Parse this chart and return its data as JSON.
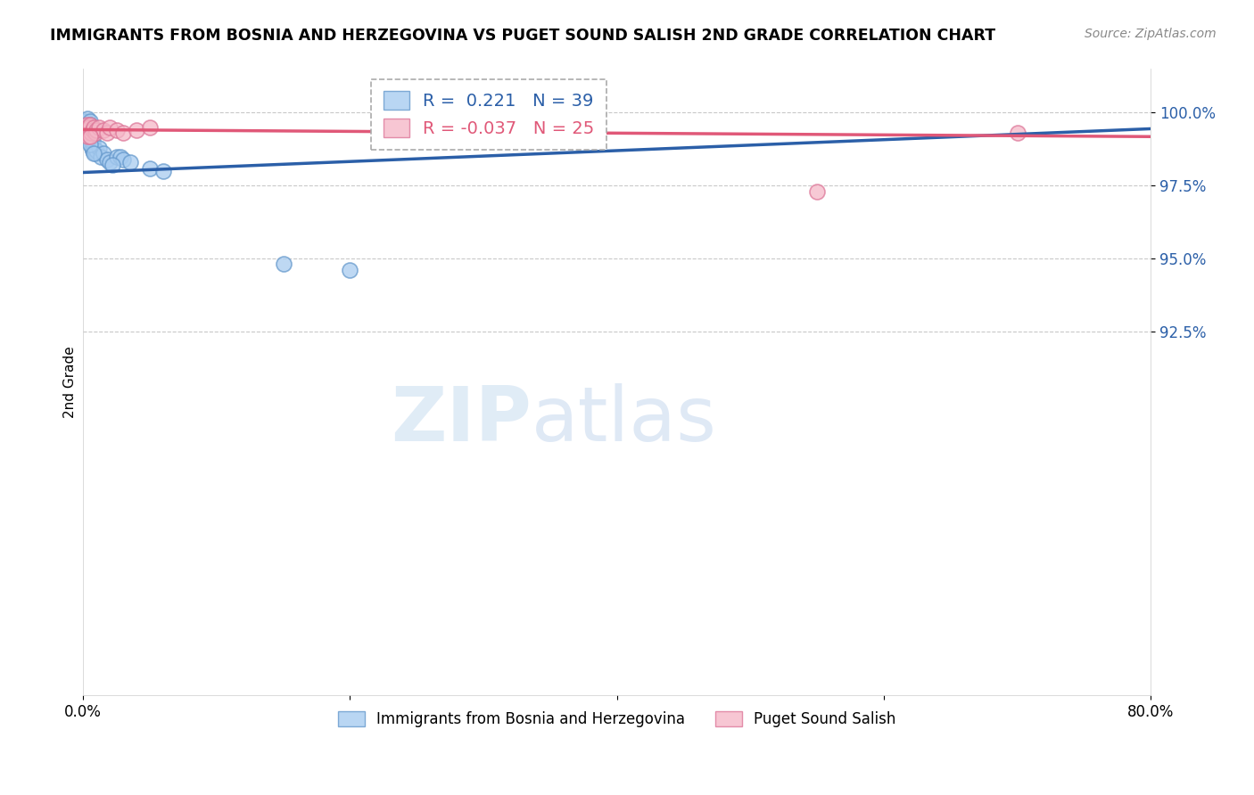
{
  "title": "IMMIGRANTS FROM BOSNIA AND HERZEGOVINA VS PUGET SOUND SALISH 2ND GRADE CORRELATION CHART",
  "source_text": "Source: ZipAtlas.com",
  "ylabel": "2nd Grade",
  "xlim": [
    0.0,
    80.0
  ],
  "ylim": [
    80.0,
    101.5
  ],
  "xticks": [
    0.0,
    20.0,
    40.0,
    60.0,
    80.0
  ],
  "xticklabels": [
    "0.0%",
    "",
    "",
    "",
    "80.0%"
  ],
  "yticks": [
    92.5,
    95.0,
    97.5,
    100.0
  ],
  "yticklabels": [
    "92.5%",
    "95.0%",
    "97.5%",
    "100.0%"
  ],
  "blue_R": 0.221,
  "blue_N": 39,
  "pink_R": -0.037,
  "pink_N": 25,
  "blue_color": "#A8CCF0",
  "pink_color": "#F5B8C8",
  "blue_line_color": "#2B5FA8",
  "pink_line_color": "#E05878",
  "blue_edge_color": "#6699CC",
  "pink_edge_color": "#DD7799",
  "blue_x": [
    0.15,
    0.18,
    0.2,
    0.25,
    0.28,
    0.3,
    0.32,
    0.35,
    0.4,
    0.45,
    0.5,
    0.55,
    0.6,
    0.65,
    0.7,
    0.75,
    0.8,
    0.9,
    1.0,
    1.2,
    1.3,
    1.5,
    1.8,
    2.0,
    2.5,
    2.8,
    3.0,
    3.5,
    5.0,
    6.0,
    0.1,
    0.12,
    0.22,
    0.38,
    0.5,
    2.2,
    0.8,
    15.0,
    20.0
  ],
  "blue_y": [
    99.5,
    99.6,
    99.7,
    99.5,
    99.4,
    99.6,
    99.5,
    99.8,
    99.3,
    99.5,
    99.7,
    99.6,
    99.1,
    98.8,
    98.7,
    99.0,
    98.8,
    98.6,
    98.7,
    98.8,
    98.5,
    98.6,
    98.4,
    98.3,
    98.5,
    98.5,
    98.4,
    98.3,
    98.1,
    98.0,
    99.3,
    99.4,
    99.2,
    99.1,
    98.9,
    98.2,
    98.6,
    94.8,
    94.6
  ],
  "pink_x": [
    0.1,
    0.15,
    0.2,
    0.25,
    0.3,
    0.35,
    0.4,
    0.45,
    0.5,
    0.6,
    0.7,
    0.8,
    0.9,
    1.0,
    1.2,
    1.5,
    1.8,
    2.0,
    2.5,
    3.0,
    4.0,
    5.0,
    0.55,
    55.0,
    70.0
  ],
  "pink_y": [
    99.5,
    99.3,
    99.4,
    99.6,
    99.5,
    99.2,
    99.4,
    99.5,
    99.6,
    99.3,
    99.4,
    99.5,
    99.3,
    99.4,
    99.5,
    99.4,
    99.3,
    99.5,
    99.4,
    99.3,
    99.4,
    99.5,
    99.2,
    97.3,
    99.3
  ],
  "watermark_zip": "ZIP",
  "watermark_atlas": "atlas",
  "legend_blue_label": "Immigrants from Bosnia and Herzegovina",
  "legend_pink_label": "Puget Sound Salish"
}
